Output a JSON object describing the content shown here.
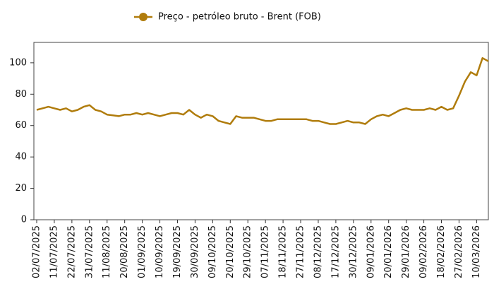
{
  "chart_data": {
    "type": "line",
    "categories": [
      "02/07/2025",
      null,
      null,
      "11/07/2025",
      null,
      null,
      "22/07/2025",
      null,
      null,
      "31/07/2025",
      null,
      null,
      "11/08/2025",
      null,
      null,
      "20/08/2025",
      null,
      null,
      "01/09/2025",
      null,
      null,
      "10/09/2025",
      null,
      null,
      "19/09/2025",
      null,
      null,
      "30/09/2025",
      null,
      null,
      "09/10/2025",
      null,
      null,
      "20/10/2025",
      null,
      null,
      "29/10/2025",
      null,
      null,
      "07/11/2025",
      null,
      null,
      "18/11/2025",
      null,
      null,
      "27/11/2025",
      null,
      null,
      "08/12/2025",
      null,
      null,
      "17/12/2025",
      null,
      null,
      "30/12/2025",
      null,
      null,
      "09/01/2026",
      null,
      null,
      "20/01/2026",
      null,
      null,
      "29/01/2026",
      null,
      null,
      "09/02/2026",
      null,
      null,
      "18/02/2026",
      null,
      null,
      "27/02/2026",
      null,
      null,
      "10/03/2026",
      null,
      null
    ],
    "series": [
      {
        "name": "Preço - petróleo bruto - Brent (FOB)",
        "color": "#b07c0c",
        "values": [
          70,
          71,
          72,
          71,
          70,
          71,
          69,
          70,
          72,
          73,
          70,
          69,
          67,
          66.5,
          66,
          67,
          67,
          68,
          67,
          68,
          67,
          66,
          67,
          68,
          68,
          67,
          70,
          67,
          65,
          67,
          66,
          63,
          62,
          61,
          66,
          65,
          65,
          65,
          64,
          63,
          63,
          64,
          64,
          64,
          64,
          64,
          64,
          63,
          63,
          62,
          61,
          61,
          62,
          63,
          62,
          62,
          61,
          64,
          66,
          67,
          66,
          68,
          70,
          71,
          70,
          70,
          70,
          71,
          70,
          72,
          70,
          71,
          79,
          88,
          94,
          92,
          103,
          101
        ]
      }
    ],
    "ylim": [
      0,
      113
    ],
    "yticks": [
      0,
      20,
      40,
      60,
      80,
      100
    ]
  }
}
